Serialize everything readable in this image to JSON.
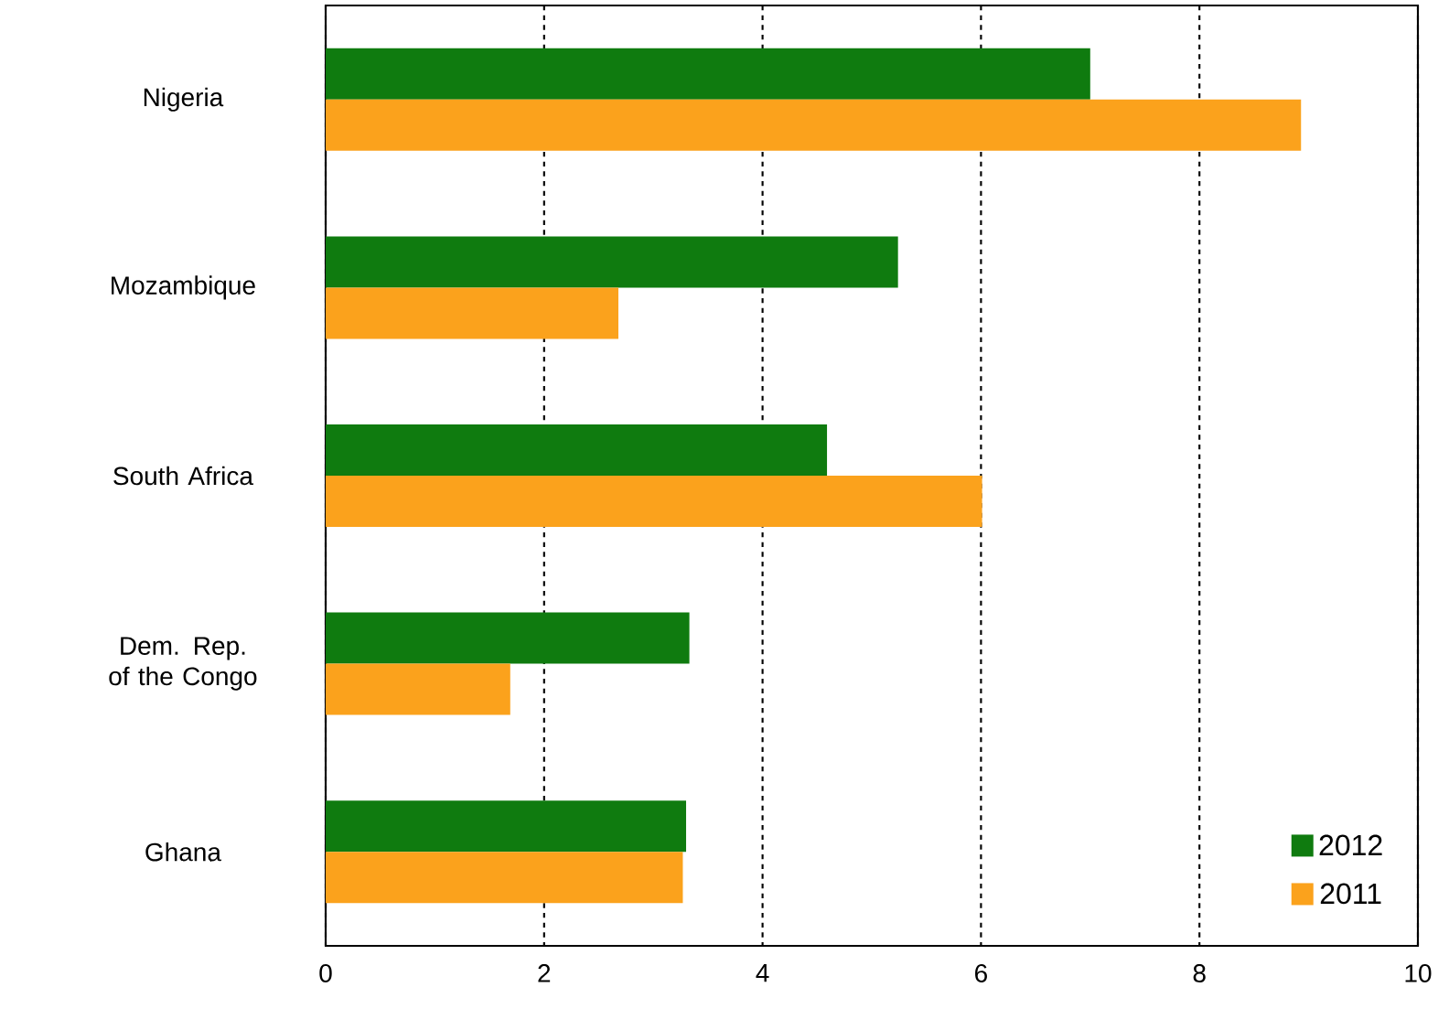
{
  "chart_data": {
    "type": "bar",
    "orientation": "horizontal",
    "categories": [
      "Nigeria",
      "Mozambique",
      "South Africa",
      "Dem. Rep. of the Congo",
      "Ghana"
    ],
    "series": [
      {
        "name": "2012",
        "color": "#0f7b0f",
        "values": [
          7.0,
          5.24,
          4.59,
          3.33,
          3.3
        ]
      },
      {
        "name": "2011",
        "color": "#fba21c",
        "values": [
          8.93,
          2.68,
          6.01,
          1.69,
          3.27
        ]
      }
    ],
    "xlim": [
      0,
      10
    ],
    "xticks": [
      0,
      2,
      4,
      6,
      8,
      10
    ],
    "grid": "x",
    "legend": "bottom right"
  }
}
